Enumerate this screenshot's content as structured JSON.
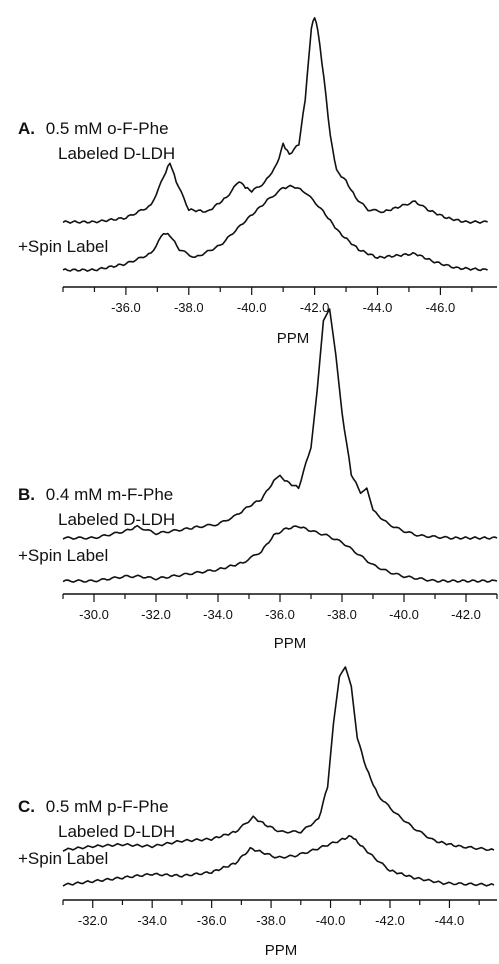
{
  "chart_data": [
    {
      "type": "line",
      "panel_letter": "A.",
      "title_line1": "0.5 mM o-F-Phe",
      "title_line2": "Labeled D-LDH",
      "xlabel": "PPM",
      "xlim": [
        -34.0,
        -47.8
      ],
      "tick_labels": [
        "-36.0",
        "-38.0",
        "-40.0",
        "-42.0",
        "-44.0",
        "-46.0"
      ],
      "tick_values": [
        -36,
        -38,
        -40,
        -42,
        -44,
        -46
      ],
      "minor_tick_values": [
        -34,
        -35,
        -37,
        -39,
        -41,
        -43,
        -45,
        -47
      ],
      "series": [
        {
          "name": "",
          "x": [
            -34.0,
            -35.0,
            -36.0,
            -36.8,
            -37.2,
            -37.4,
            -37.6,
            -38.0,
            -38.6,
            -39.2,
            -39.6,
            -39.8,
            -40.0,
            -40.4,
            -40.8,
            -41.0,
            -41.2,
            -41.5,
            -41.7,
            -41.9,
            -42.0,
            -42.1,
            -42.3,
            -42.5,
            -42.7,
            -43.0,
            -43.3,
            -43.7,
            -44.2,
            -44.8,
            -45.2,
            -45.6,
            -46.2,
            -46.8,
            -47.5
          ],
          "y": [
            0.0,
            0.0,
            0.02,
            0.08,
            0.22,
            0.29,
            0.2,
            0.06,
            0.05,
            0.12,
            0.2,
            0.17,
            0.15,
            0.19,
            0.28,
            0.38,
            0.33,
            0.38,
            0.6,
            0.95,
            1.0,
            0.94,
            0.7,
            0.42,
            0.25,
            0.2,
            0.12,
            0.06,
            0.05,
            0.08,
            0.1,
            0.06,
            0.02,
            0.0,
            0.0
          ]
        },
        {
          "name": "+Spin Label",
          "x": [
            -34.0,
            -35.0,
            -36.0,
            -36.8,
            -37.2,
            -37.4,
            -37.7,
            -38.2,
            -39.0,
            -39.8,
            -40.5,
            -41.0,
            -41.3,
            -41.7,
            -42.2,
            -42.8,
            -43.4,
            -44.0,
            -44.6,
            -45.2,
            -45.8,
            -46.5,
            -47.5
          ],
          "y": [
            0.0,
            0.0,
            0.03,
            0.08,
            0.18,
            0.17,
            0.1,
            0.06,
            0.12,
            0.24,
            0.34,
            0.4,
            0.41,
            0.38,
            0.3,
            0.18,
            0.1,
            0.06,
            0.07,
            0.08,
            0.04,
            0.01,
            0.0
          ]
        }
      ]
    },
    {
      "type": "line",
      "panel_letter": "B.",
      "title_line1": "0.4 mM m-F-Phe",
      "title_line2": "Labeled D-LDH",
      "xlabel": "PPM",
      "xlim": [
        -29.0,
        -43.0
      ],
      "tick_labels": [
        "-30.0",
        "-32.0",
        "-34.0",
        "-36.0",
        "-38.0",
        "-40.0",
        "-42.0"
      ],
      "tick_values": [
        -30,
        -32,
        -34,
        -36,
        -38,
        -40,
        -42
      ],
      "minor_tick_values": [
        -29,
        -31,
        -33,
        -35,
        -37,
        -39,
        -41,
        -43
      ],
      "series": [
        {
          "name": "",
          "x": [
            -29.0,
            -30.0,
            -31.0,
            -31.4,
            -32.0,
            -33.0,
            -33.4,
            -34.0,
            -34.6,
            -35.0,
            -35.4,
            -35.8,
            -36.0,
            -36.3,
            -36.6,
            -37.0,
            -37.2,
            -37.4,
            -37.6,
            -37.8,
            -38.0,
            -38.3,
            -38.6,
            -38.8,
            -39.0,
            -39.5,
            -40.0,
            -40.5,
            -41.5,
            -43.0
          ],
          "y": [
            0.0,
            0.0,
            0.03,
            0.05,
            0.02,
            0.04,
            0.05,
            0.06,
            0.1,
            0.14,
            0.17,
            0.25,
            0.27,
            0.24,
            0.22,
            0.4,
            0.65,
            0.95,
            1.0,
            0.8,
            0.55,
            0.28,
            0.2,
            0.22,
            0.12,
            0.06,
            0.03,
            0.01,
            0.0,
            0.0
          ]
        },
        {
          "name": "+Spin Label",
          "x": [
            -29.0,
            -30.0,
            -31.0,
            -31.5,
            -32.0,
            -33.0,
            -34.0,
            -34.8,
            -35.4,
            -35.8,
            -36.2,
            -36.6,
            -37.0,
            -37.5,
            -38.0,
            -38.5,
            -39.0,
            -39.5,
            -40.0,
            -41.0,
            -43.0
          ],
          "y": [
            0.0,
            0.0,
            0.02,
            0.02,
            0.01,
            0.03,
            0.05,
            0.08,
            0.13,
            0.2,
            0.23,
            0.24,
            0.22,
            0.2,
            0.17,
            0.12,
            0.07,
            0.04,
            0.02,
            0.0,
            0.0
          ]
        }
      ]
    },
    {
      "type": "line",
      "panel_letter": "C.",
      "title_line1": "0.5 mM p-F-Phe",
      "title_line2": "Labeled D-LDH",
      "xlabel": "PPM",
      "xlim": [
        -31.0,
        -45.6
      ],
      "tick_labels": [
        "-32.0",
        "-34.0",
        "-36.0",
        "-38.0",
        "-40.0",
        "-42.0",
        "-44.0"
      ],
      "tick_values": [
        -32,
        -34,
        -36,
        -38,
        -40,
        -42,
        -44
      ],
      "minor_tick_values": [
        -31,
        -33,
        -35,
        -37,
        -39,
        -41,
        -43,
        -45
      ],
      "series": [
        {
          "name": "",
          "x": [
            -31.0,
            -32.0,
            -33.0,
            -34.0,
            -35.0,
            -36.0,
            -36.8,
            -37.4,
            -37.8,
            -38.3,
            -39.0,
            -39.6,
            -39.9,
            -40.1,
            -40.3,
            -40.5,
            -40.7,
            -40.9,
            -41.2,
            -41.6,
            -42.2,
            -42.8,
            -43.5,
            -44.3,
            -45.5
          ],
          "y": [
            0.0,
            0.02,
            0.03,
            0.02,
            0.05,
            0.06,
            0.1,
            0.18,
            0.14,
            0.1,
            0.1,
            0.17,
            0.35,
            0.7,
            0.95,
            1.0,
            0.9,
            0.62,
            0.45,
            0.3,
            0.2,
            0.12,
            0.05,
            0.02,
            0.0
          ]
        },
        {
          "name": "+Spin Label",
          "x": [
            -31.0,
            -32.0,
            -33.0,
            -34.0,
            -35.0,
            -36.0,
            -36.8,
            -37.3,
            -37.7,
            -38.2,
            -38.8,
            -39.4,
            -39.9,
            -40.4,
            -40.7,
            -41.0,
            -41.4,
            -42.0,
            -42.8,
            -43.8,
            -45.5
          ],
          "y": [
            0.0,
            0.02,
            0.04,
            0.06,
            0.05,
            0.07,
            0.12,
            0.2,
            0.18,
            0.15,
            0.16,
            0.19,
            0.22,
            0.25,
            0.27,
            0.22,
            0.16,
            0.08,
            0.04,
            0.01,
            0.0
          ]
        }
      ]
    }
  ]
}
